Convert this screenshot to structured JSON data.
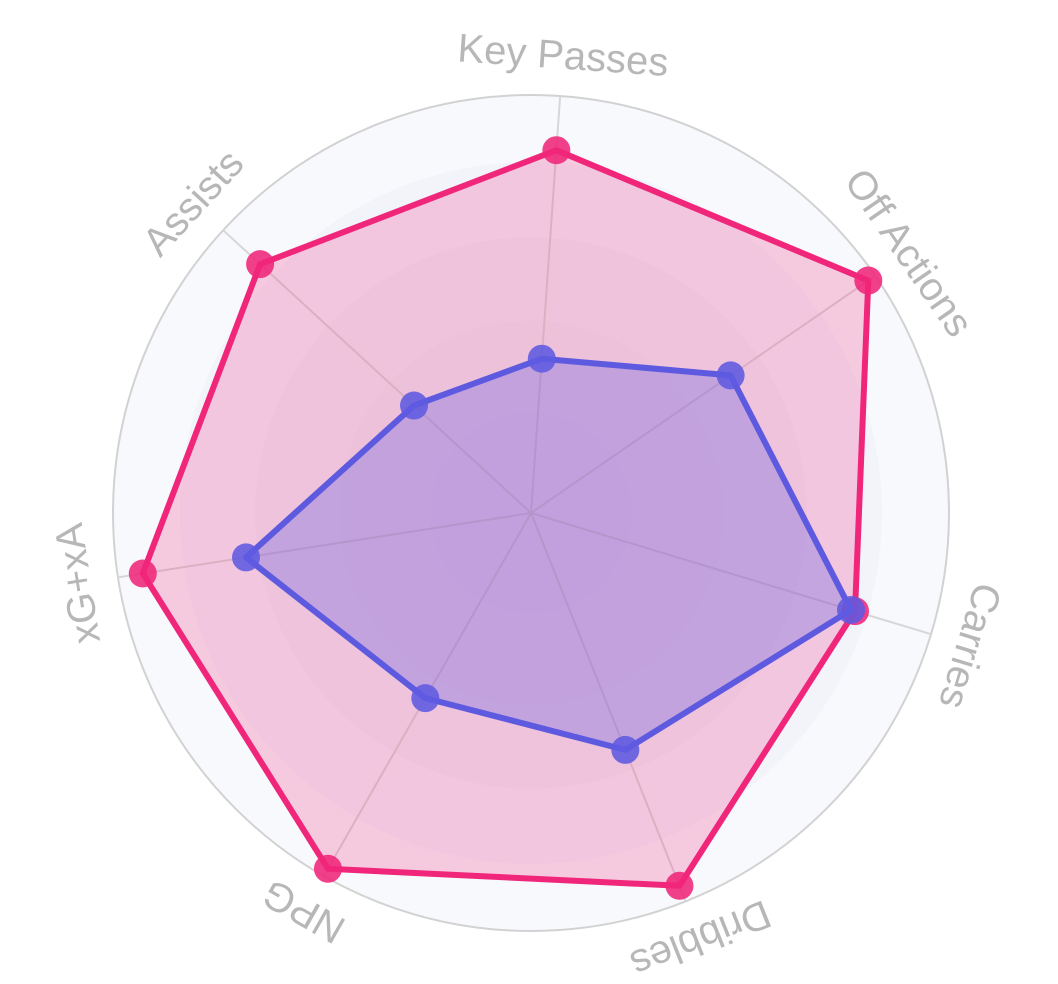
{
  "chart_data": {
    "type": "radar",
    "title": "",
    "axes": [
      "Key Passes",
      "Off Actions",
      "Carries",
      "Dribbles",
      "NPG",
      "xG+xA",
      "Assists"
    ],
    "range": [
      0,
      100
    ],
    "grid": true,
    "series": [
      {
        "values": [
          87,
          98,
          81,
          96,
          98,
          94,
          88
        ],
        "color": "#f0267a",
        "fill": "rgba(240,38,122,0.22)"
      },
      {
        "values": [
          37,
          58,
          80,
          61,
          51,
          69,
          38
        ],
        "color": "#5e5ae0",
        "fill": "rgba(94,90,224,0.30)"
      }
    ],
    "legend": "none"
  }
}
